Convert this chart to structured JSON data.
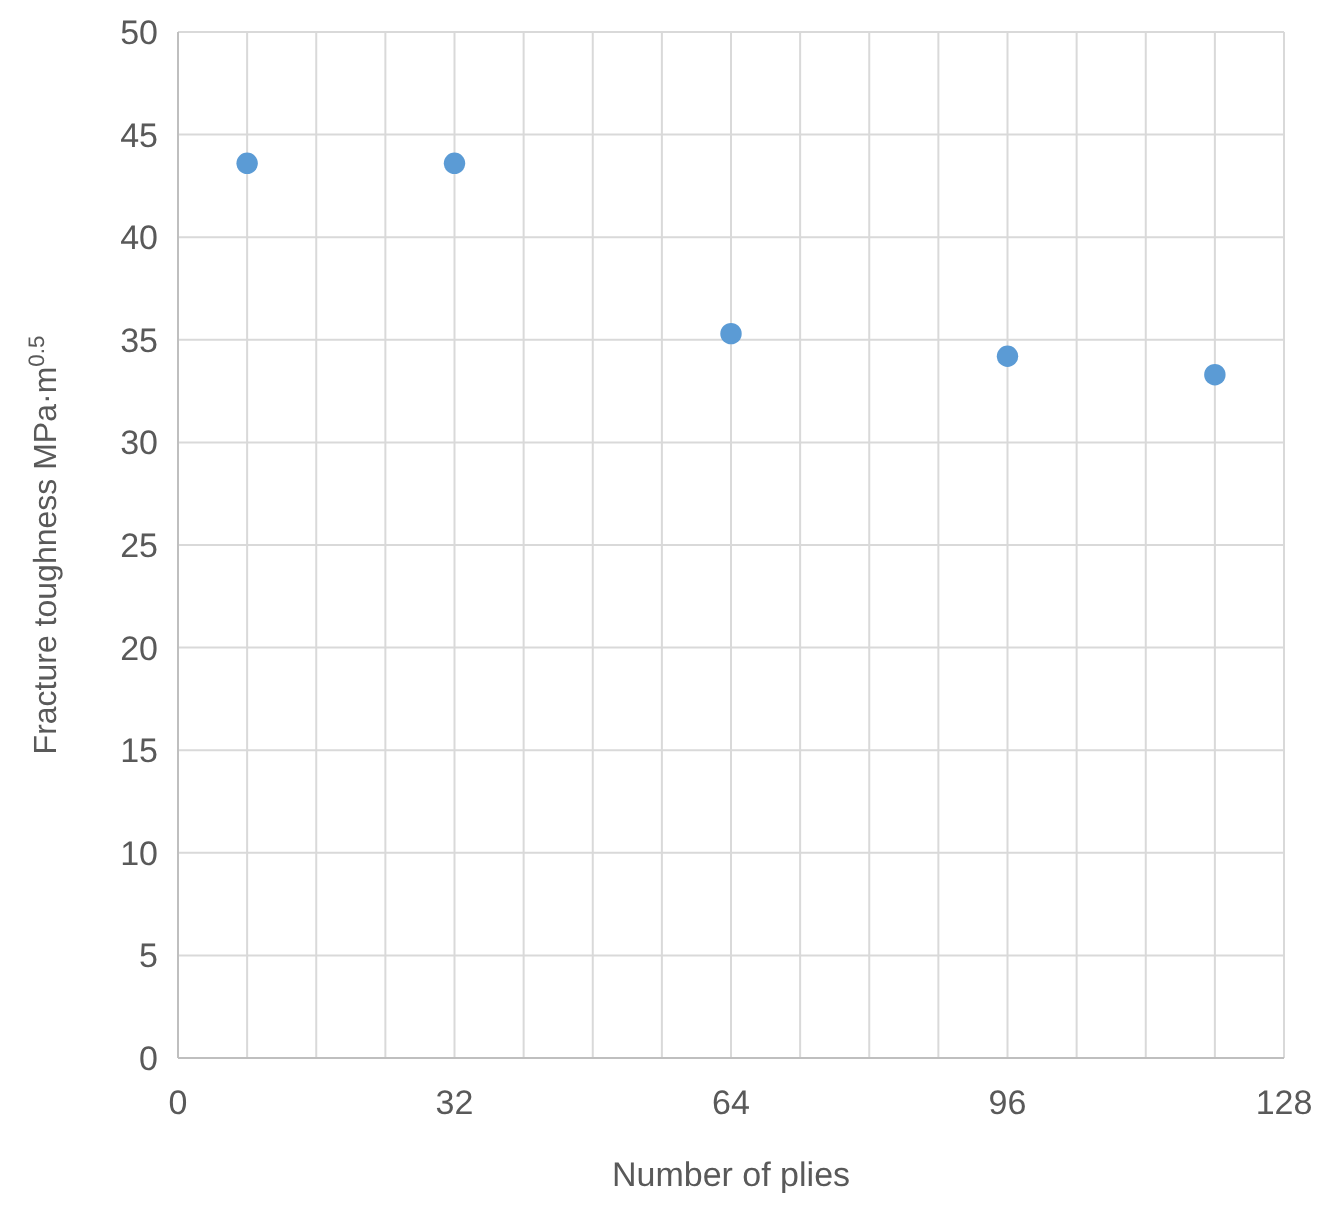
{
  "chart_data": {
    "type": "scatter",
    "xlabel": "Number of plies",
    "ylabel": "Fracture toughness MPa·m$^{0.5}$",
    "x": [
      8,
      32,
      64,
      96,
      120
    ],
    "series": [
      {
        "color": "#5b9bd5",
        "values": [
          43.6,
          43.6,
          35.3,
          34.2,
          33.3
        ]
      }
    ],
    "xlim": [
      0,
      128
    ],
    "xticks": [
      0,
      {
        "value": 8,
        "label": null
      },
      {
        "value": 16,
        "label": null
      },
      {
        "value": 24,
        "label": null
      },
      32,
      {
        "value": 40,
        "label": null
      },
      {
        "value": 48,
        "label": null
      },
      {
        "value": 56,
        "label": null
      },
      64,
      {
        "value": 72,
        "label": null
      },
      {
        "value": 80,
        "label": null
      },
      {
        "value": 88,
        "label": null
      },
      96,
      {
        "value": 104,
        "label": null
      },
      {
        "value": 112,
        "label": null
      },
      {
        "value": 120,
        "label": null
      },
      128
    ],
    "ylim": [
      0,
      50
    ],
    "yticks": [
      0,
      5,
      10,
      15,
      20,
      25,
      30,
      35,
      40,
      45,
      50
    ],
    "grid": true,
    "marker": "circle"
  }
}
